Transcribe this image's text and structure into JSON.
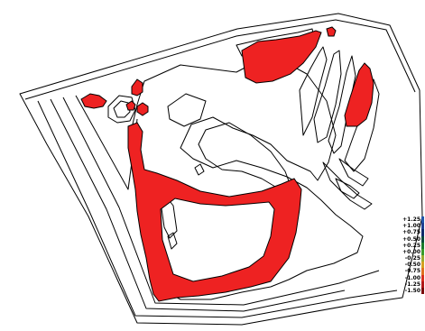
{
  "colors": {
    "background": "#ffffff",
    "contour": "#000000",
    "fill": "#ee2222"
  },
  "legend": {
    "labels": [
      "+1.25",
      "+1.00",
      "+0.75",
      "+0.50",
      "+0.25",
      "+0.00",
      "-0.25",
      "-0.50",
      "-0.75",
      "-1.00",
      "-1.25",
      "-1.50"
    ],
    "colors": [
      "#2255aa",
      "#1f3f8f",
      "#102a6a",
      "#0a4a3a",
      "#1a7a2a",
      "#3a9a2a",
      "#9aaa30",
      "#d4a020",
      "#e07020",
      "#d83020",
      "#b01818",
      "#7a0a0a"
    ]
  }
}
